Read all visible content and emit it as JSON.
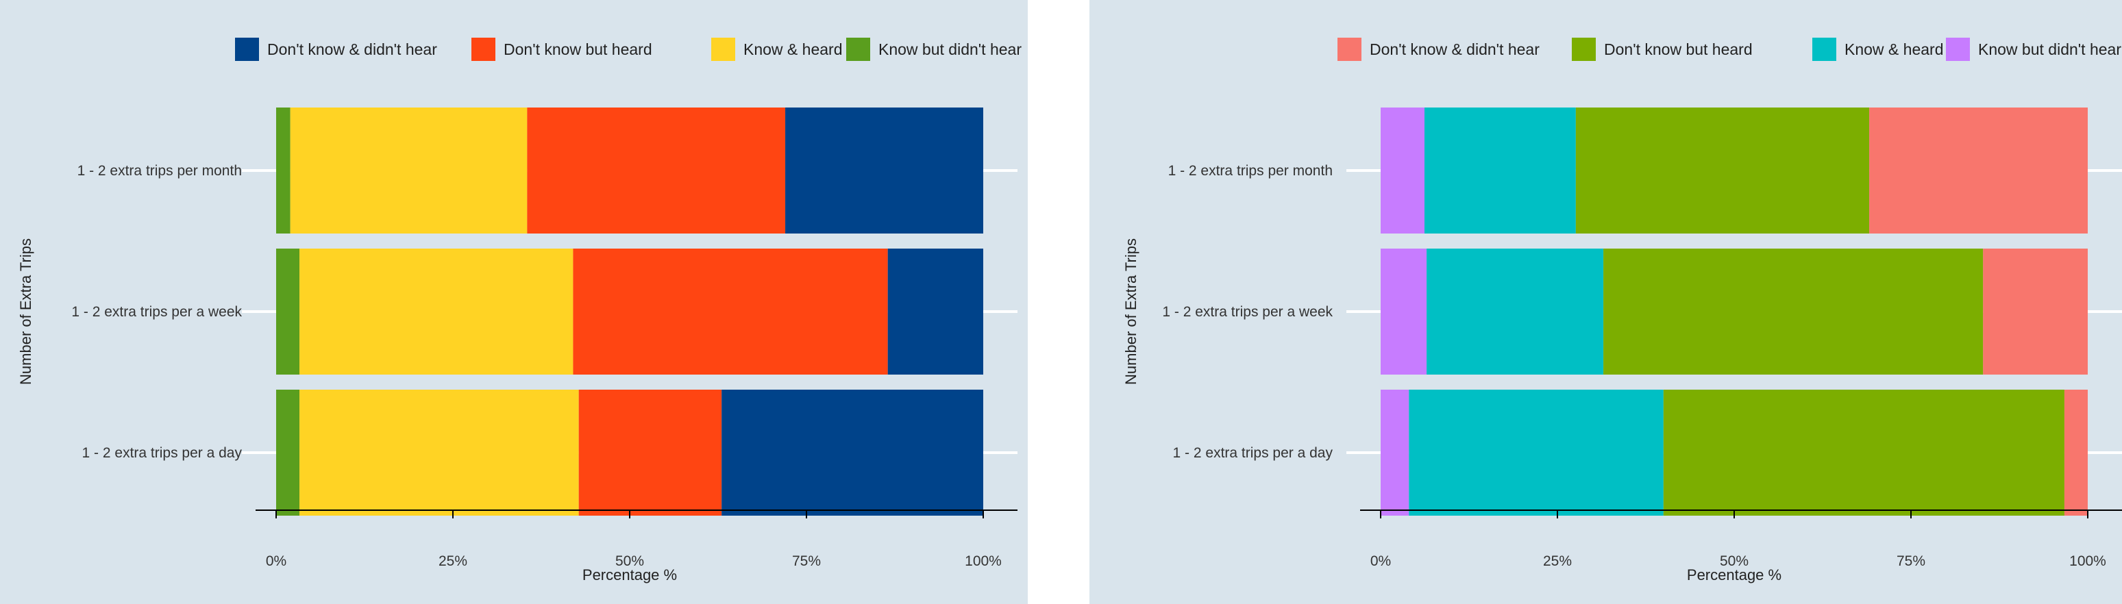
{
  "chart_data": [
    {
      "type": "bar",
      "orientation": "horizontal",
      "stacked": true,
      "categories": [
        "1 - 2 extra trips per month",
        "1 - 2 extra trips per a week",
        "1 - 2 extra trips per a day"
      ],
      "xlabel": "Percentage %",
      "ylabel": "Number of Extra Trips",
      "xlim": [
        0,
        100
      ],
      "xticks": [
        "0%",
        "25%",
        "50%",
        "75%",
        "100%"
      ],
      "xtick_values": [
        0,
        25,
        50,
        75,
        100
      ],
      "legend_position": "top",
      "background": "#d9e4ec",
      "series": [
        {
          "name": "Know but didn't hear",
          "color": "#5a9e1e",
          "values": [
            2,
            3.3,
            3.3
          ]
        },
        {
          "name": "Know & heard",
          "color": "#ffd324",
          "values": [
            33.5,
            38.7,
            39.5
          ]
        },
        {
          "name": "Don't know but heard",
          "color": "#ff4512",
          "values": [
            36.5,
            44.5,
            20.2
          ]
        },
        {
          "name": "Don't know & didn't hear",
          "color": "#00438a",
          "values": [
            28,
            13.5,
            37
          ]
        }
      ],
      "legend_order": [
        "Don't know & didn't hear",
        "Don't know but heard",
        "Know & heard",
        "Know but didn't hear"
      ]
    },
    {
      "type": "bar",
      "orientation": "horizontal",
      "stacked": true,
      "categories": [
        "1 - 2 extra trips per month",
        "1 - 2 extra trips per a week",
        "1 - 2 extra trips per a day"
      ],
      "xlabel": "Percentage %",
      "ylabel": "Number of Extra Trips",
      "xlim": [
        0,
        100
      ],
      "xticks": [
        "0%",
        "25%",
        "50%",
        "75%",
        "100%"
      ],
      "xtick_values": [
        0,
        25,
        50,
        75,
        100
      ],
      "legend_position": "top",
      "background": "#d9e4ec",
      "series": [
        {
          "name": "Know but didn't hear",
          "color": "#c77cff",
          "values": [
            6.2,
            6.5,
            4
          ]
        },
        {
          "name": "Know & heard",
          "color": "#00bfc4",
          "values": [
            21.4,
            25,
            36
          ]
        },
        {
          "name": "Don't know but heard",
          "color": "#7cae00",
          "values": [
            41.5,
            53.7,
            56.7
          ]
        },
        {
          "name": "Don't know & didn't hear",
          "color": "#f8766d",
          "values": [
            30.9,
            14.8,
            3.3
          ]
        }
      ],
      "legend_order": [
        "Don't know & didn't hear",
        "Don't know but heard",
        "Know & heard",
        "Know but didn't hear"
      ]
    }
  ]
}
